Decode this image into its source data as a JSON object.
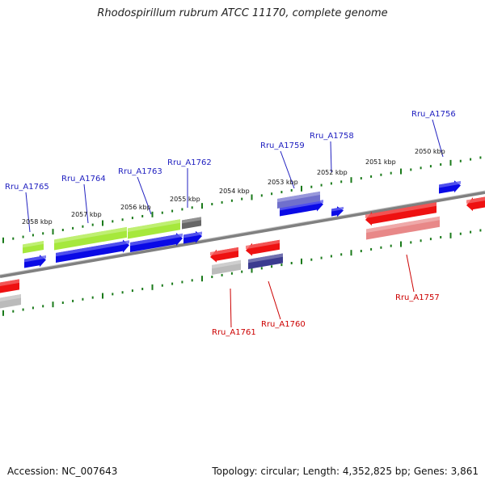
{
  "title": "Rhodospirillum rubrum ATCC 11170, complete genome",
  "footer": {
    "accession": "Accession: NC_007643",
    "summary": "Topology: circular; Length: 4,352,825 bp; Genes: 3,861"
  },
  "colors": {
    "backbone": "#808080",
    "ticks": "#1a7a1a",
    "gene_blue": "#0a0ae6",
    "label_blue": "#2020c0",
    "label_red": "#cc0000",
    "lime": "#a6e83c",
    "red": "#ee1111",
    "pink": "#e88888",
    "gray": "#bbbbbb",
    "darkgray": "#666666",
    "slate": "#3b3b90",
    "lavender": "#7070cc"
  },
  "scale_labels": [
    "2050 kbp",
    "2051 kbp",
    "2052 kbp",
    "2053 kbp",
    "2054 kbp",
    "2055 kbp",
    "2056 kbp",
    "2057 kbp",
    "2058 kbp"
  ],
  "gene_labels": [
    {
      "text": "Rru_A1756",
      "strand": "forward"
    },
    {
      "text": "Rru_A1757",
      "strand": "reverse"
    },
    {
      "text": "Rru_A1758",
      "strand": "forward"
    },
    {
      "text": "Rru_A1759",
      "strand": "forward"
    },
    {
      "text": "Rru_A1760",
      "strand": "reverse"
    },
    {
      "text": "Rru_A1761",
      "strand": "reverse"
    },
    {
      "text": "Rru_A1762",
      "strand": "forward"
    },
    {
      "text": "Rru_A1763",
      "strand": "forward"
    },
    {
      "text": "Rru_A1764",
      "strand": "forward"
    },
    {
      "text": "Rru_A1765",
      "strand": "forward"
    }
  ]
}
